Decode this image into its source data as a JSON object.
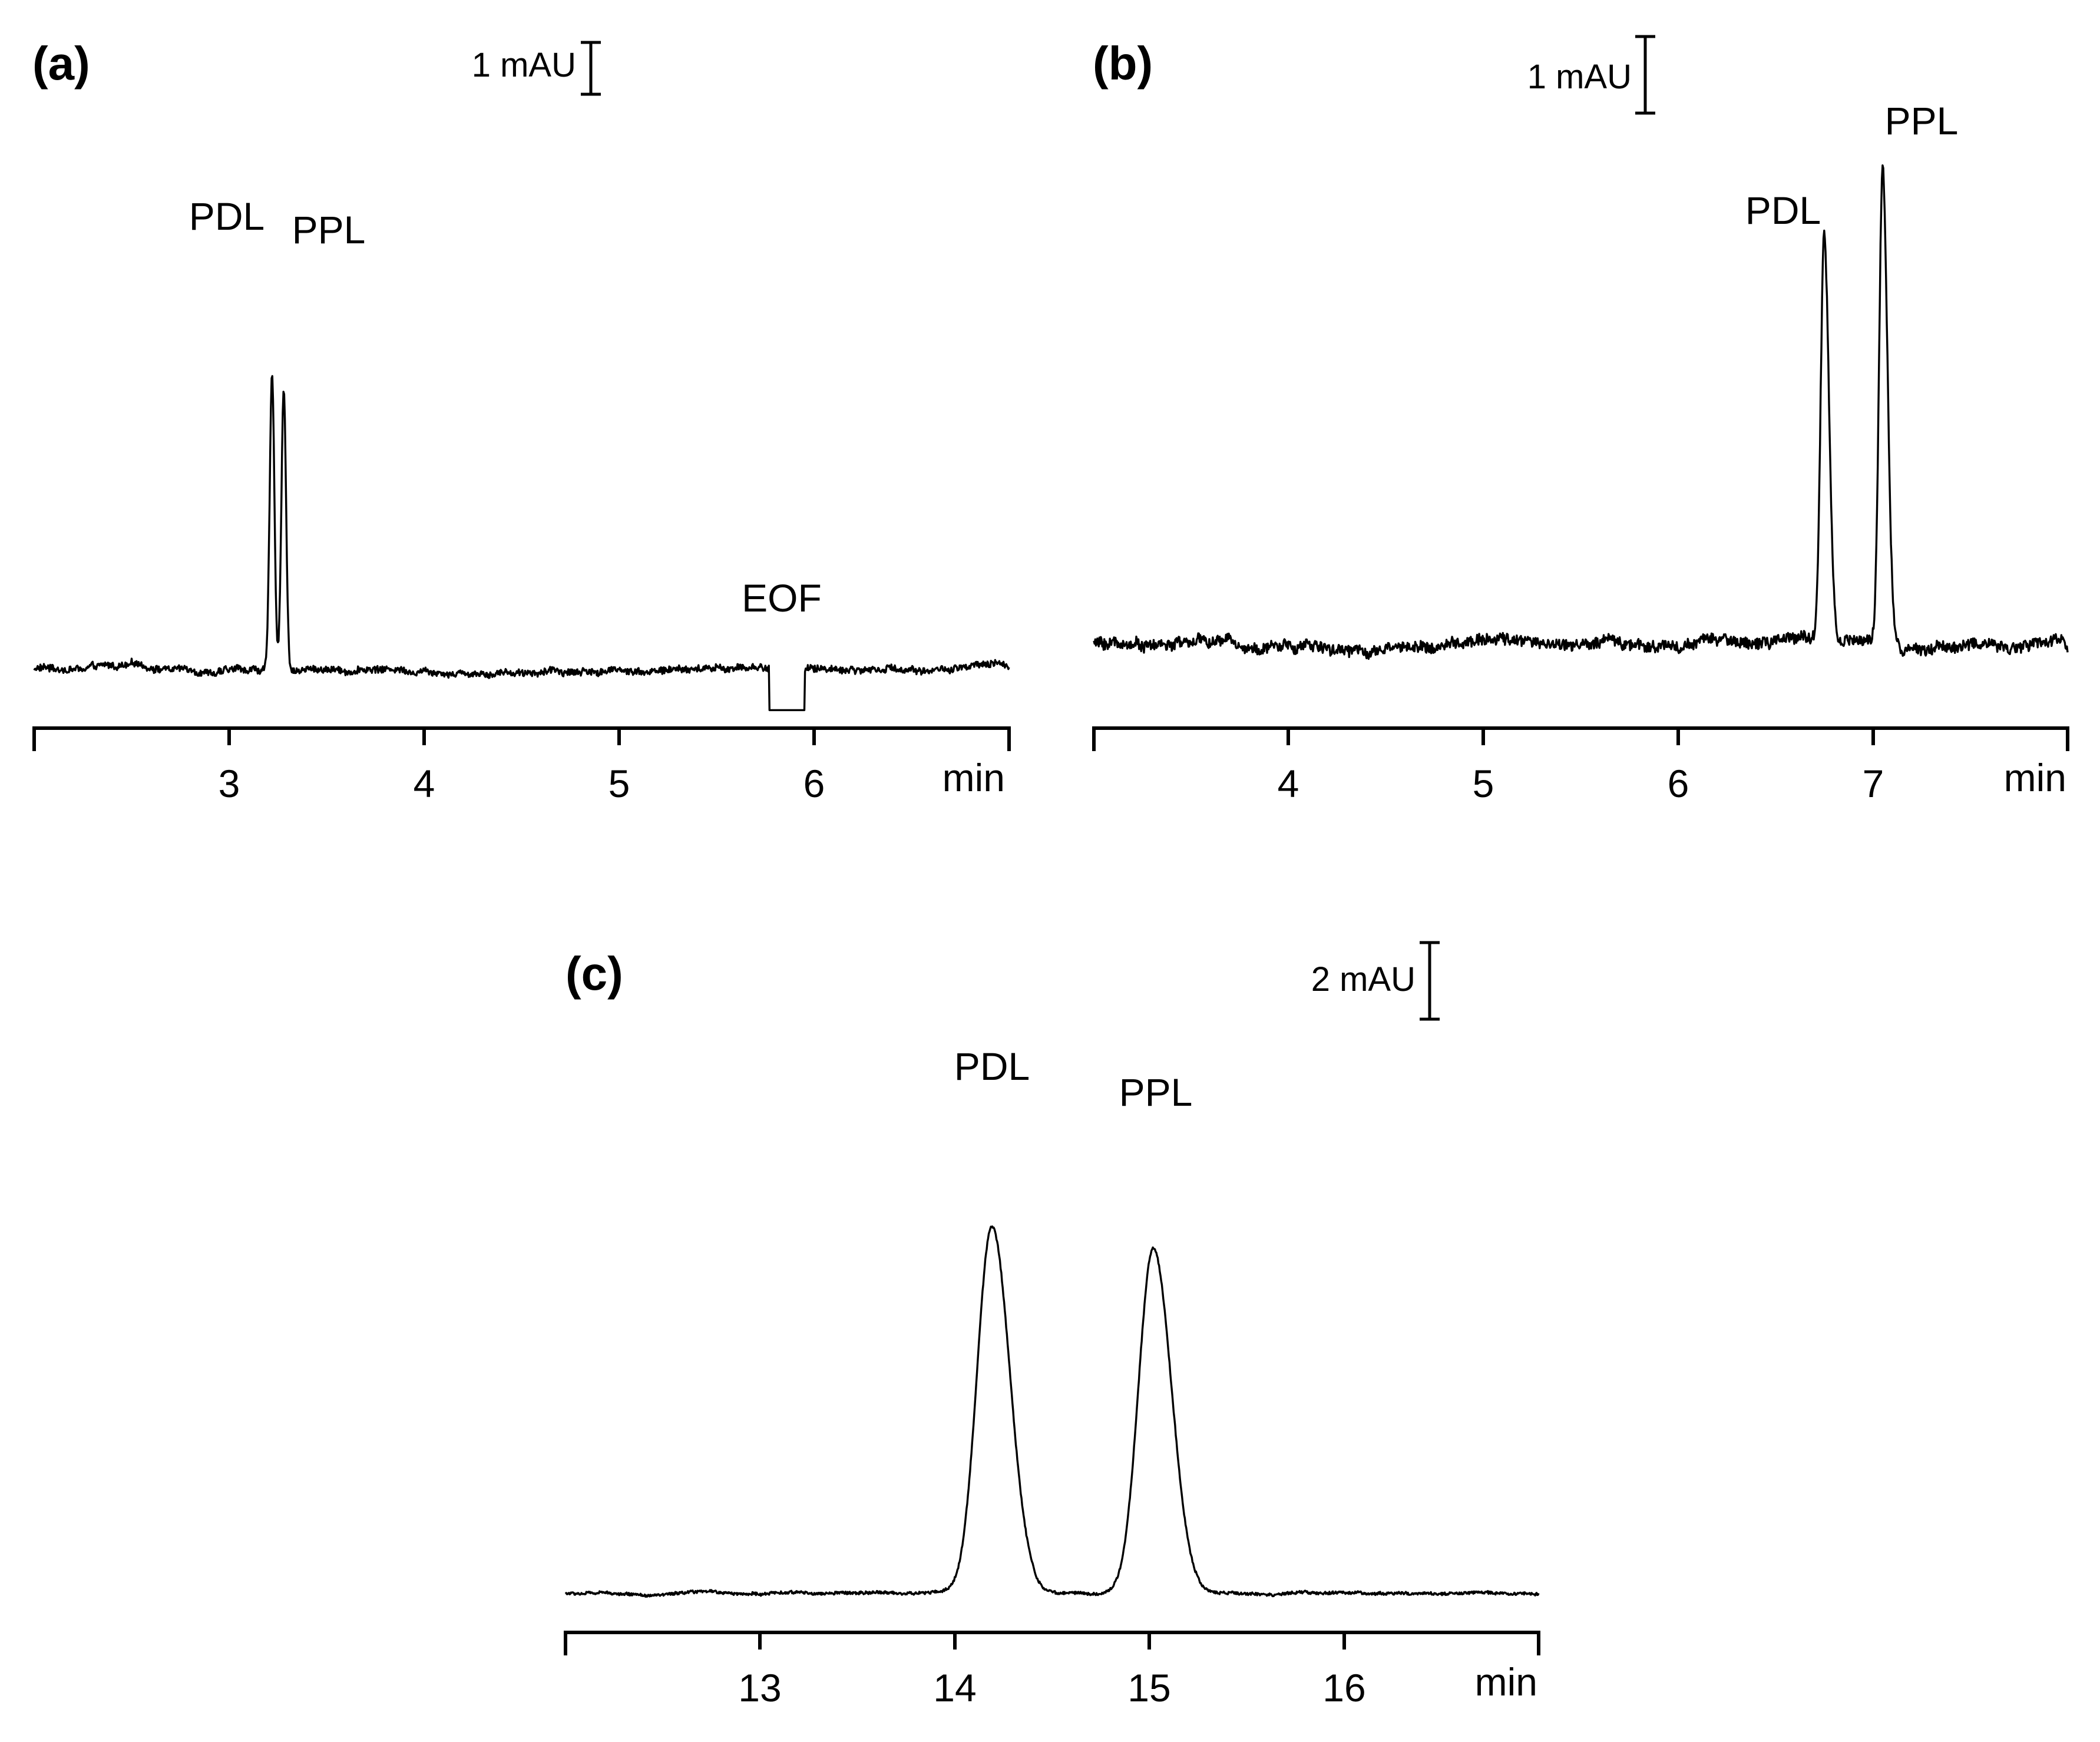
{
  "chart_data": [
    {
      "type": "line",
      "panel_label": "(a)",
      "xunit": "min",
      "xlim": [
        2,
        7
      ],
      "xticks": [
        3,
        4,
        5,
        6
      ],
      "xtick_labels": [
        "3",
        "4",
        "5",
        "6"
      ],
      "scale_bar": {
        "label": "1 mAU",
        "value": 1
      },
      "baseline": 0,
      "noise": 0.09,
      "peaks": [
        {
          "label": "PDL",
          "x": 3.22,
          "height": 5.6,
          "width": 0.012,
          "tail": 0
        },
        {
          "label": "PPL",
          "x": 3.28,
          "height": 5.4,
          "width": 0.012,
          "tail": 0
        }
      ],
      "dips": [
        {
          "label": "EOF",
          "x_start": 5.77,
          "x_end": 5.95,
          "depth": 0.8
        }
      ]
    },
    {
      "type": "line",
      "panel_label": "(b)",
      "xunit": "min",
      "xlim": [
        3,
        8
      ],
      "xticks": [
        4,
        5,
        6,
        7
      ],
      "xtick_labels": [
        "4",
        "5",
        "6",
        "7"
      ],
      "scale_bar": {
        "label": "1 mAU",
        "value": 1
      },
      "baseline": 0,
      "noise": 0.1,
      "peaks": [
        {
          "label": "PDL",
          "x": 6.75,
          "height": 5.3,
          "width": 0.018,
          "tail": 0.06
        },
        {
          "label": "PPL",
          "x": 7.05,
          "height": 6.2,
          "width": 0.018,
          "tail": 0.06
        }
      ],
      "dips": []
    },
    {
      "type": "line",
      "panel_label": "(c)",
      "xunit": "min",
      "xlim": [
        12,
        17
      ],
      "xticks": [
        13,
        14,
        15,
        16
      ],
      "xtick_labels": [
        "13",
        "14",
        "15",
        "16"
      ],
      "scale_bar": {
        "label": "2 mAU",
        "value": 2
      },
      "baseline": 0,
      "noise": 0.05,
      "peaks": [
        {
          "label": "PDL",
          "x": 14.19,
          "height": 9.6,
          "width": 0.075,
          "tail": 0.04
        },
        {
          "label": "PPL",
          "x": 15.02,
          "height": 9.0,
          "width": 0.075,
          "tail": 0.04
        }
      ],
      "dips": []
    }
  ]
}
